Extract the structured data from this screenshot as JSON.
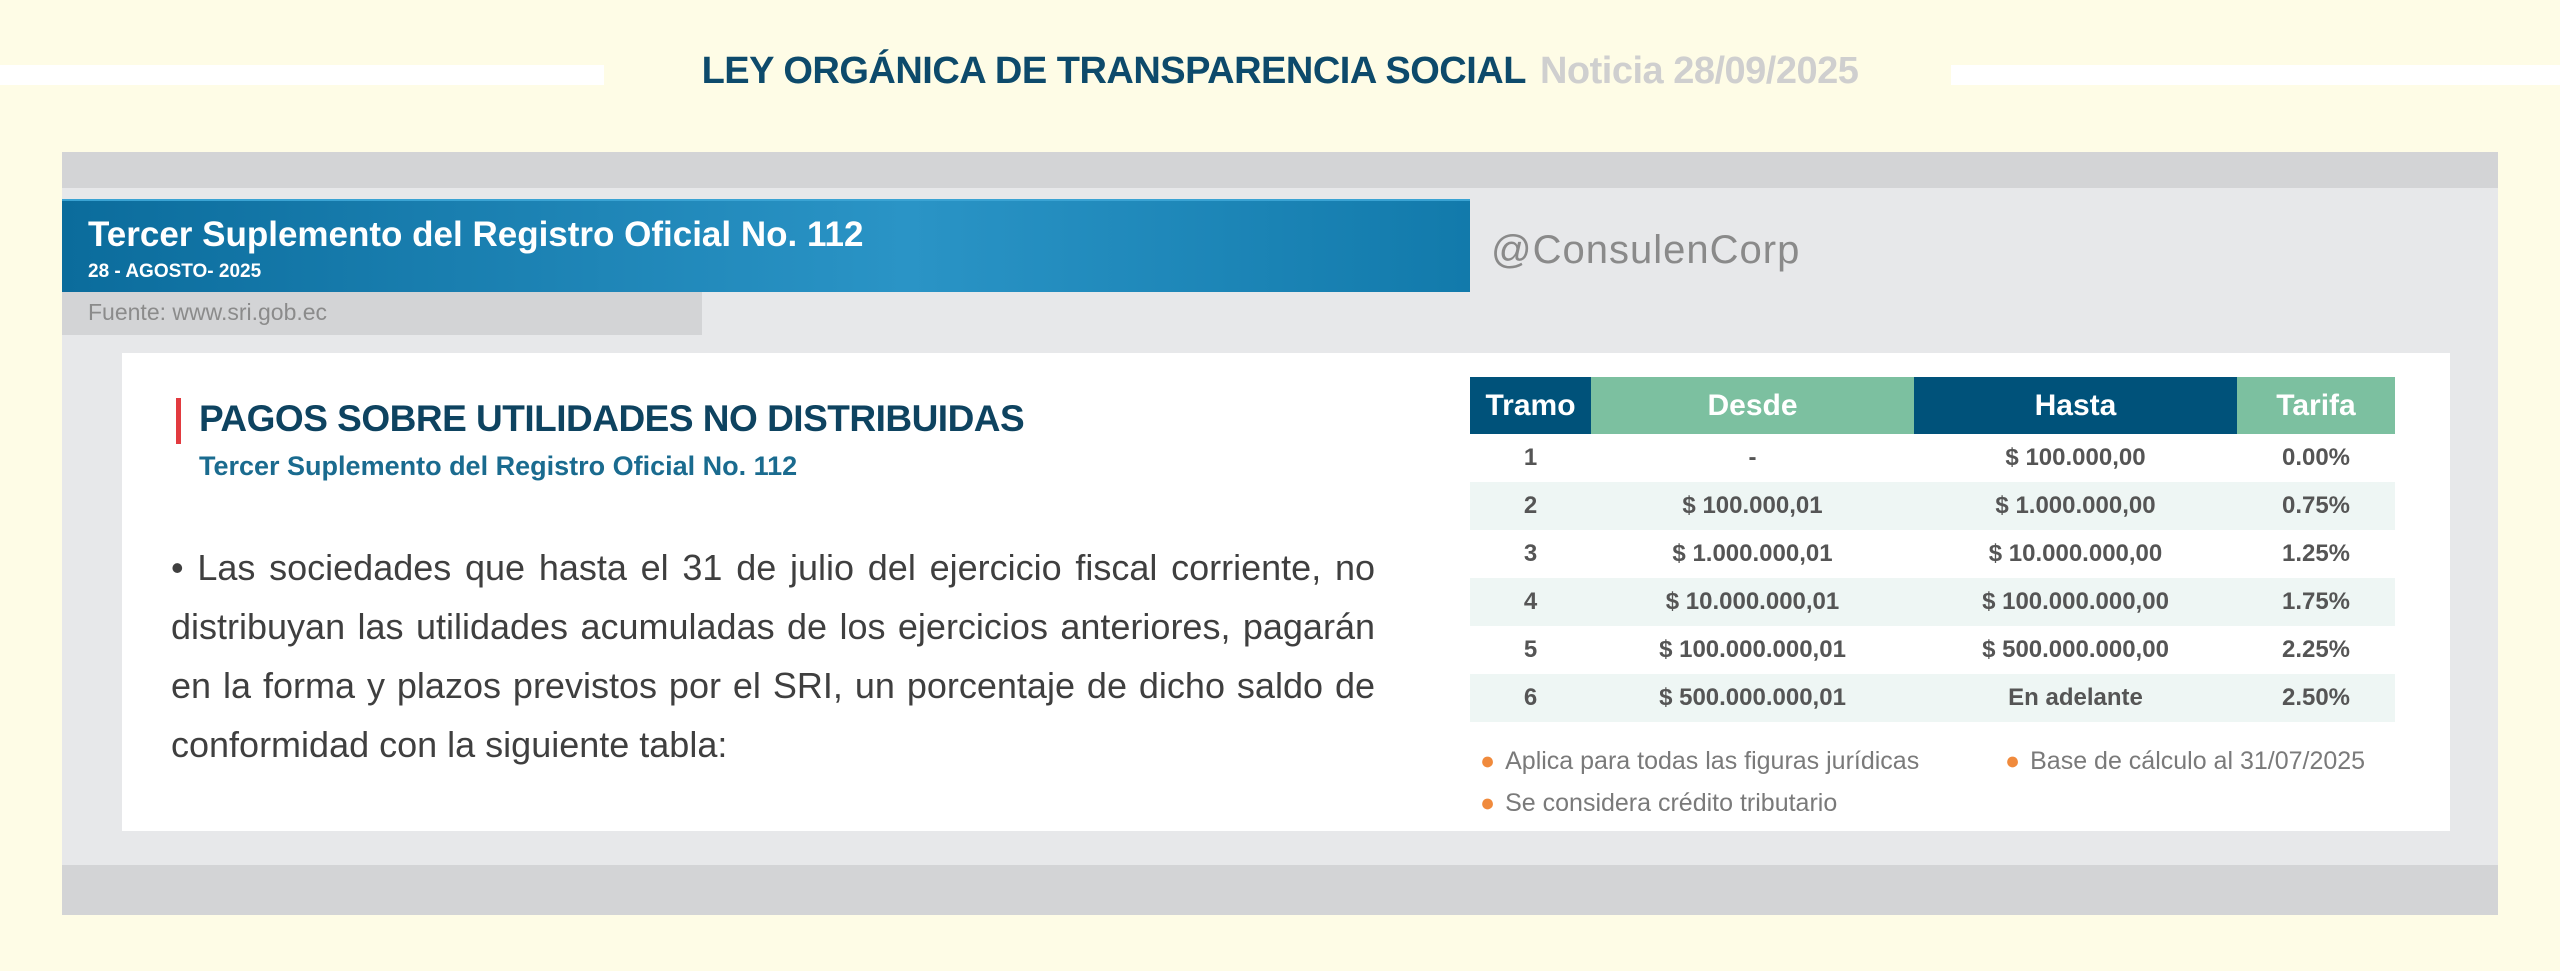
{
  "header": {
    "title": "LEY ORGÁNICA DE TRANSPARENCIA SOCIAL",
    "date_note": "Noticia 28/09/2025"
  },
  "banner": {
    "title": "Tercer Suplemento del Registro Oficial No. 112",
    "date": "28 - AGOSTO- 2025",
    "source": "Fuente: www.sri.gob.ec"
  },
  "handle": "@ConsulenCorp",
  "content": {
    "heading": "PAGOS SOBRE UTILIDADES NO DISTRIBUIDAS",
    "subheading": "Tercer Suplemento del Registro Oficial No. 112",
    "paragraph": "• Las sociedades que hasta el 31 de julio del ejercicio fiscal corriente, no distribuyan las utilidades acumuladas de los ejercicios anteriores, pagarán en la forma y plazos previstos por el SRI, un porcentaje de dicho saldo de conformidad con la siguiente tabla:"
  },
  "table": {
    "headers": [
      "Tramo",
      "Desde",
      "Hasta",
      "Tarifa"
    ],
    "rows": [
      [
        "1",
        "-",
        "$ 100.000,00",
        "0.00%"
      ],
      [
        "2",
        "$ 100.000,01",
        "$ 1.000.000,00",
        "0.75%"
      ],
      [
        "3",
        "$ 1.000.000,01",
        "$ 10.000.000,00",
        "1.25%"
      ],
      [
        "4",
        "$ 10.000.000,01",
        "$ 100.000.000,00",
        "1.75%"
      ],
      [
        "5",
        "$ 100.000.000,01",
        "$ 500.000.000,00",
        "2.25%"
      ],
      [
        "6",
        "$ 500.000.000,01",
        "En adelante",
        "2.50%"
      ]
    ]
  },
  "notes": [
    "Aplica para todas las figuras jurídicas",
    "Base de cálculo al 31/07/2025",
    "Se considera crédito tributario"
  ],
  "colors": {
    "header_dark": "#00527a",
    "header_green": "#7cc0a0",
    "accent_red": "#e23a3f",
    "bullet_orange": "#f08a3c"
  }
}
